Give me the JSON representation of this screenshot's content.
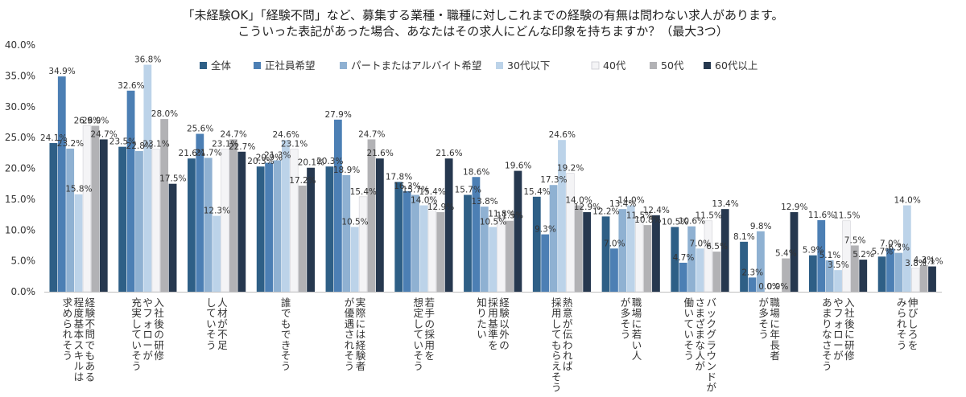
{
  "chart_data": {
    "type": "bar",
    "title": [
      "「未経験OK」「経験不問」など、募集する業種・職種に対しこれまでの経験の有無は問わない求人があります。",
      "こういった表記があった場合、あなたはその求人にどんな印象を持ちますか？（最大3つ）"
    ],
    "ylim": [
      0,
      40
    ],
    "yticks": [
      "0.0%",
      "5.0%",
      "10.0%",
      "15.0%",
      "20.0%",
      "25.0%",
      "30.0%",
      "35.0%",
      "40.0%"
    ],
    "grid": false,
    "legend_position": "top",
    "categories": [
      [
        "経験不問でもある",
        "程度基本スキルは",
        "求められそう"
      ],
      [
        "入社後の研修",
        "やフォローが",
        "充実していそう"
      ],
      [
        "人材が不足",
        "していそう"
      ],
      [
        "誰でもできそう"
      ],
      [
        "実際には経験者",
        "が優遇されそう"
      ],
      [
        "若手の採用を",
        "想定していそう"
      ],
      [
        "経験以外の",
        "採用基準を",
        "知りたい"
      ],
      [
        "熱意が伝われば",
        "採用してもらえそう"
      ],
      [
        "職場に若い人",
        "が多そう"
      ],
      [
        "バックグラウンドが",
        "さまざまな人が",
        "働いていそう"
      ],
      [
        "職場に年長者",
        "が多そう"
      ],
      [
        "入社後に研修",
        "やフォローが",
        "あまりなさそう"
      ],
      [
        "伸びしろを",
        "みられそう"
      ]
    ],
    "series": [
      {
        "name": "全体",
        "color": "#2e5f86",
        "values": [
          24.1,
          23.5,
          21.6,
          20.3,
          20.3,
          17.8,
          15.7,
          15.4,
          12.2,
          10.5,
          8.1,
          5.9,
          5.7
        ],
        "labels": [
          "24.1%",
          "23.5%",
          "21.6%",
          "20.3%",
          "20.3%",
          "17.8%",
          "15.7%",
          "15.4%",
          "12.2%",
          "10.5%",
          "8.1%",
          "5.9%",
          "5.7%"
        ]
      },
      {
        "name": "正社員希望",
        "color": "#4c7fb4",
        "values": [
          34.9,
          32.6,
          25.6,
          20.9,
          27.9,
          16.3,
          18.6,
          9.3,
          7.0,
          4.7,
          2.3,
          11.6,
          7.0
        ],
        "labels": [
          "34.9%",
          "32.6%",
          "25.6%",
          "20.9%",
          "27.9%",
          "16.3%",
          "18.6%",
          "9.3%",
          "7.0%",
          "4.7%",
          "2.3%",
          "11.6%",
          "7.0%"
        ]
      },
      {
        "name": "パートまたはアルバイト希望",
        "color": "#8fb1d2",
        "values": [
          23.2,
          22.8,
          21.7,
          21.3,
          18.9,
          15.7,
          13.8,
          17.3,
          13.4,
          10.6,
          9.8,
          5.1,
          6.3
        ],
        "labels": [
          "23.2%",
          "22.8%",
          "21.7%",
          "21.3%",
          "18.9%",
          "15.7%",
          "13.8%",
          "17.3%",
          "13.4%",
          "10.6%",
          "9.8%",
          "5.1%",
          "6.3%"
        ]
      },
      {
        "name": "30代以下",
        "color": "#bcd3e9",
        "values": [
          15.8,
          36.8,
          12.3,
          24.6,
          10.5,
          14.0,
          10.5,
          24.6,
          14.0,
          7.0,
          0.0,
          3.5,
          14.0
        ],
        "labels": [
          "15.8%",
          "36.8%",
          "12.3%",
          "24.6%",
          "10.5%",
          "14.0%",
          "10.5%",
          "24.6%",
          "14.0%",
          "7.0%",
          "0.0%",
          "3.5%",
          "14.0%"
        ]
      },
      {
        "name": "40代",
        "color": "#f4f4f6",
        "values": [
          26.9,
          23.1,
          23.1,
          23.1,
          15.4,
          15.4,
          11.8,
          19.2,
          11.5,
          11.5,
          0.0,
          11.5,
          3.8
        ],
        "labels": [
          "26.9%",
          "23.1%",
          "23.1%",
          "23.1%",
          "15.4%",
          "15.4%",
          "11.8%",
          "19.2%",
          "11.5%",
          "11.5%",
          "0.0%",
          "11.5%",
          "3.8%"
        ]
      },
      {
        "name": "50代",
        "color": "#b2b2b5",
        "values": [
          26.9,
          28.0,
          24.7,
          17.2,
          24.7,
          12.9,
          11.5,
          14.0,
          10.8,
          6.5,
          5.4,
          7.5,
          4.3
        ],
        "labels": [
          "26.9%",
          "28.0%",
          "24.7%",
          "17.2%",
          "24.7%",
          "12.9%",
          "11.5%",
          "14.0%",
          "10.8%",
          "6.5%",
          "5.4%",
          "7.5%",
          "4.3%"
        ]
      },
      {
        "name": "60代以上",
        "color": "#26384f",
        "values": [
          24.7,
          17.5,
          22.7,
          20.1,
          21.6,
          21.6,
          19.6,
          12.9,
          12.4,
          13.4,
          12.9,
          5.2,
          4.1
        ],
        "labels": [
          "24.7%",
          "17.5%",
          "22.7%",
          "20.1%",
          "21.6%",
          "21.6%",
          "19.6%",
          "12.9%",
          "12.4%",
          "13.4%",
          "12.9%",
          "5.2%",
          "4.1%"
        ]
      }
    ]
  }
}
